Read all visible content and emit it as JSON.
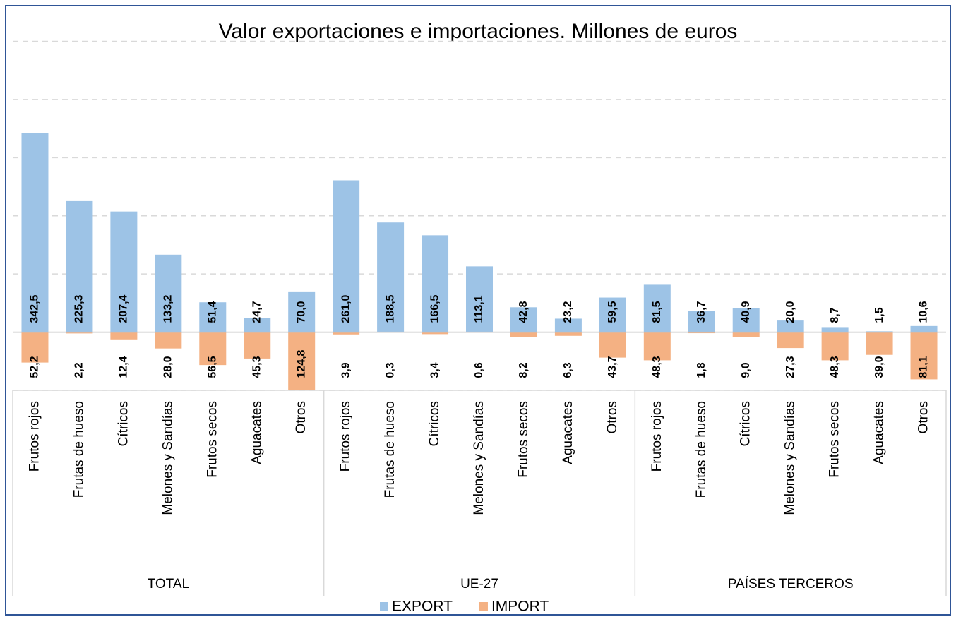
{
  "chart_data": {
    "type": "bar",
    "title": "Valor exportaciones e importaciones. Millones de euros",
    "categories": [
      "Frutos rojos",
      "Frutas de hueso",
      "Cítricos",
      "Melones y Sandías",
      "Frutos secos",
      "Aguacates",
      "Otros",
      "Frutos rojos",
      "Frutas de hueso",
      "Cítricos",
      "Melones y Sandías",
      "Frutos secos",
      "Aguacates",
      "Otros",
      "Frutos rojos",
      "Frutas de hueso",
      "Cítricos",
      "Melones y Sandías",
      "Frutos secos",
      "Aguacates",
      "Otros"
    ],
    "groups": [
      "TOTAL",
      "UE-27",
      "PAÍSES TERCEROS"
    ],
    "series": [
      {
        "name": "EXPORT",
        "color": "#9dc3e6",
        "values": [
          342.5,
          225.3,
          207.4,
          133.2,
          51.4,
          24.7,
          70.0,
          261.0,
          188.5,
          166.5,
          113.1,
          42.8,
          23.2,
          59.5,
          81.5,
          36.7,
          40.9,
          20.0,
          8.7,
          1.5,
          10.6
        ],
        "value_labels": [
          "342,5",
          "225,3",
          "207,4",
          "133,2",
          "51,4",
          "24,7",
          "70,0",
          "261,0",
          "188,5",
          "166,5",
          "113,1",
          "42,8",
          "23,2",
          "59,5",
          "81,5",
          "36,7",
          "40,9",
          "20,0",
          "8,7",
          "1,5",
          "10,6"
        ]
      },
      {
        "name": "IMPORT",
        "color": "#f4b183",
        "values": [
          -52.2,
          -2.2,
          -12.4,
          -28.0,
          -56.5,
          -45.3,
          -124.8,
          -3.9,
          -0.3,
          -3.4,
          -0.6,
          -8.2,
          -6.3,
          -43.7,
          -48.3,
          -1.8,
          -9.0,
          -27.3,
          -48.3,
          -39.0,
          -81.1
        ],
        "value_labels": [
          "52,2",
          "2,2",
          "12,4",
          "28,0",
          "56,5",
          "45,3",
          "124,8",
          "3,9",
          "0,3",
          "3,4",
          "0,6",
          "8,2",
          "6,3",
          "43,7",
          "48,3",
          "1,8",
          "9,0",
          "27,3",
          "48,3",
          "39,0",
          "81,1"
        ]
      }
    ],
    "ylim": [
      -100,
      500
    ],
    "yticks": [
      -100,
      0,
      100,
      200,
      300,
      400,
      500
    ],
    "grid": true
  }
}
